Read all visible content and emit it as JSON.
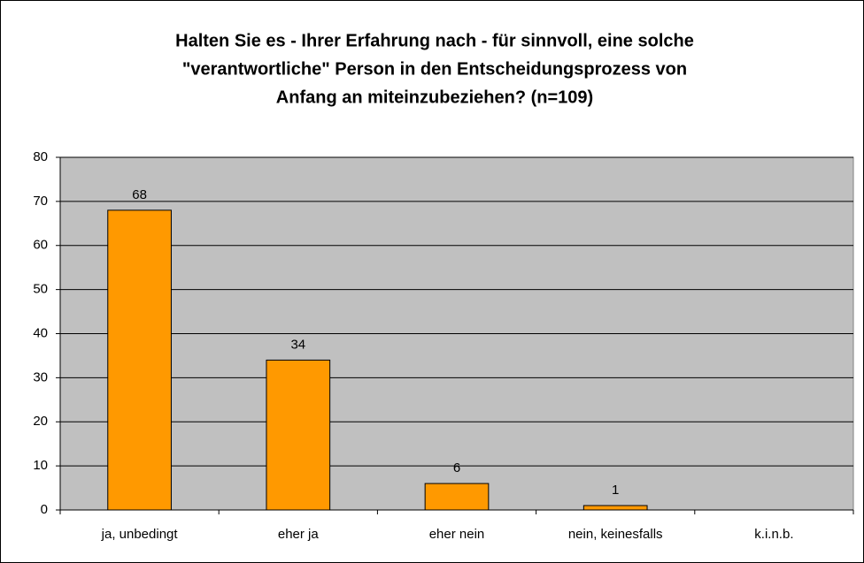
{
  "chart_data": {
    "type": "bar",
    "title": [
      "Halten Sie es - Ihrer Erfahrung nach - für sinnvoll, eine solche",
      "\"verantwortliche\" Person in den Entscheidungsprozess von",
      "Anfang an miteinzubeziehen? (n=109)"
    ],
    "categories": [
      "ja, unbedingt",
      "eher ja",
      "eher nein",
      "nein, keinesfalls",
      "k.i.n.b."
    ],
    "values": [
      68,
      34,
      6,
      1,
      null
    ],
    "color": "#ff9900",
    "ylim": [
      0,
      80
    ],
    "yticks": [
      0,
      10,
      20,
      30,
      40,
      50,
      60,
      70,
      80
    ],
    "grid": true
  }
}
